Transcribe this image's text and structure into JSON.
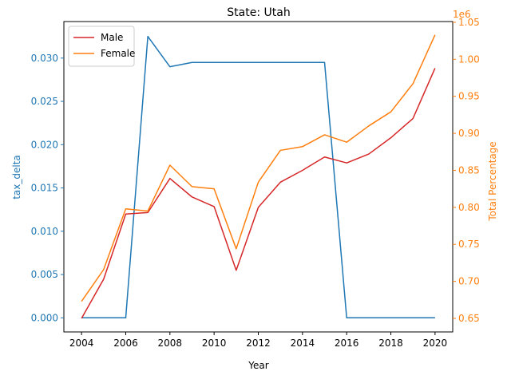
{
  "chart_data": {
    "type": "line",
    "title": "State: Utah",
    "xlabel": "Year",
    "ylabel_left": "tax_delta",
    "ylabel_right": "Total Percentage",
    "right_offset_label": "1e6",
    "x": [
      2004,
      2005,
      2006,
      2007,
      2008,
      2009,
      2010,
      2011,
      2012,
      2013,
      2014,
      2015,
      2016,
      2017,
      2018,
      2019,
      2020
    ],
    "xlim": [
      2003.2,
      2020.8
    ],
    "ylim_left": [
      -0.00163,
      0.03422
    ],
    "ylim_right": [
      0.6317,
      1.051
    ],
    "x_ticks": [
      2004,
      2006,
      2008,
      2010,
      2012,
      2014,
      2016,
      2018,
      2020
    ],
    "x_tick_labels": [
      "2004",
      "2006",
      "2008",
      "2010",
      "2012",
      "2014",
      "2016",
      "2018",
      "2020"
    ],
    "left_ticks": [
      0.0,
      0.005,
      0.01,
      0.015,
      0.02,
      0.025,
      0.03
    ],
    "left_tick_labels": [
      "0.000",
      "0.005",
      "0.010",
      "0.015",
      "0.020",
      "0.025",
      "0.030"
    ],
    "right_ticks": [
      0.65,
      0.7,
      0.75,
      0.8,
      0.85,
      0.9,
      0.95,
      1.0,
      1.05
    ],
    "right_tick_labels": [
      "0.65",
      "0.70",
      "0.75",
      "0.80",
      "0.85",
      "0.90",
      "0.95",
      "1.00",
      "1.05"
    ],
    "grid": false,
    "legend_position": "top-left",
    "series": [
      {
        "axis": "left",
        "color": "#1f77b4",
        "values": [
          0.0,
          0.0,
          0.0,
          0.0325,
          0.029,
          0.0295,
          0.0295,
          0.0295,
          0.0295,
          0.0295,
          0.0295,
          0.0295,
          0.0,
          0.0,
          0.0,
          0.0,
          0.0
        ]
      },
      {
        "name": "Male",
        "axis": "right",
        "color": "#d62728",
        "values": [
          0.65,
          0.703,
          0.791,
          0.793,
          0.839,
          0.814,
          0.801,
          0.715,
          0.8,
          0.834,
          0.85,
          0.868,
          0.86,
          0.872,
          0.894,
          0.92,
          0.988
        ]
      },
      {
        "name": "Female",
        "axis": "right",
        "color": "#ff7f0e",
        "values": [
          0.673,
          0.716,
          0.798,
          0.795,
          0.857,
          0.828,
          0.825,
          0.744,
          0.834,
          0.877,
          0.882,
          0.898,
          0.888,
          0.91,
          0.929,
          0.967,
          1.033
        ]
      }
    ]
  }
}
